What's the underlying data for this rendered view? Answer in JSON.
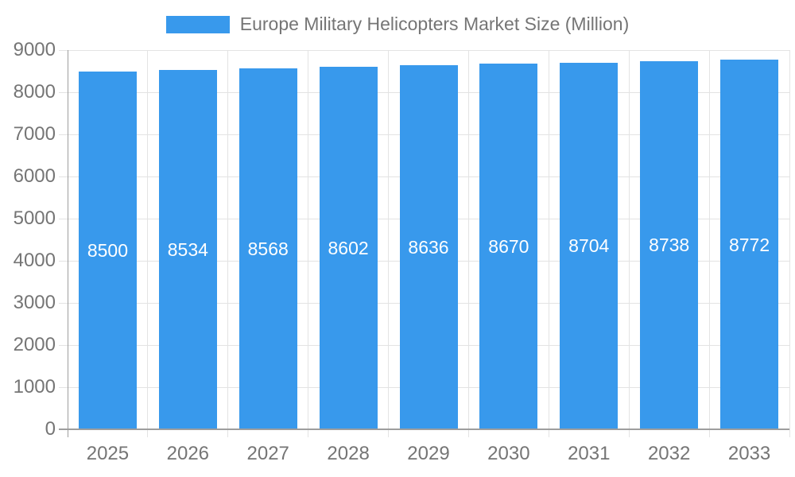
{
  "legend": {
    "series_label": "Europe Military Helicopters Market Size (Million)"
  },
  "chart_data": {
    "type": "bar",
    "title": "Europe Military Helicopters Market Size (Million)",
    "categories": [
      "2025",
      "2026",
      "2027",
      "2028",
      "2029",
      "2030",
      "2031",
      "2032",
      "2033"
    ],
    "values": [
      8500,
      8534,
      8568,
      8602,
      8636,
      8670,
      8704,
      8738,
      8772
    ],
    "xlabel": "",
    "ylabel": "",
    "ylim": [
      0,
      9000
    ],
    "yticks": [
      0,
      1000,
      2000,
      3000,
      4000,
      5000,
      6000,
      7000,
      8000,
      9000
    ],
    "grid": true,
    "legend_position": "top",
    "value_labels": "inside-center",
    "colors": {
      "bar": "#3899EC",
      "axis_text": "#757575",
      "grid_line": "#E3E3E3",
      "axis_line": "#9E9E9E",
      "value_label_text": "#FFFFFF",
      "background": "#FFFFFF"
    }
  }
}
